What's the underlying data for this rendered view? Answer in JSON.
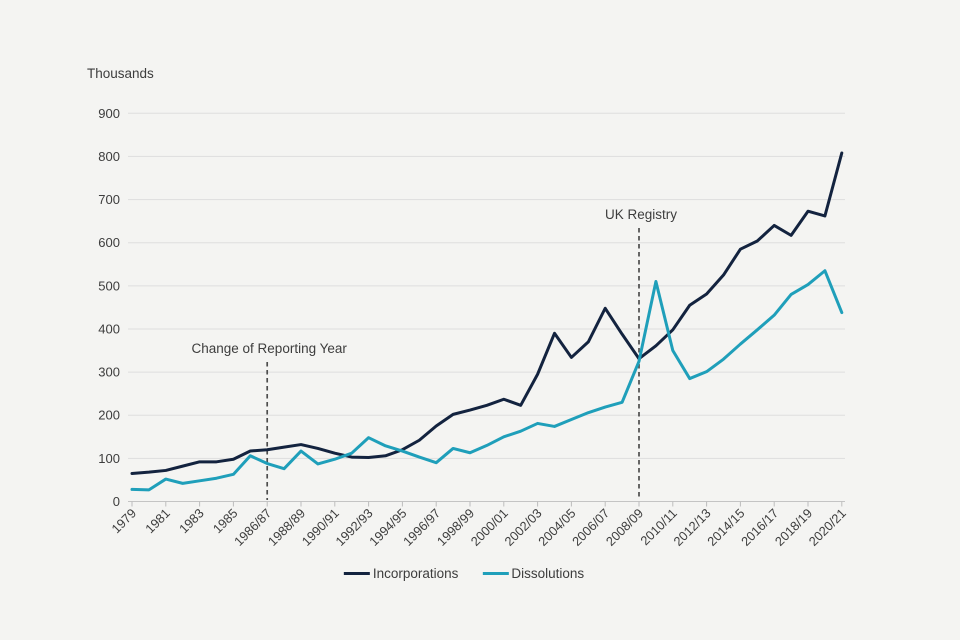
{
  "page": {
    "background": "#f4f4f2"
  },
  "chart_data": {
    "type": "line",
    "unit_label": "Thousands",
    "ylim": [
      0,
      900
    ],
    "y_tick_labels": [
      "0",
      "100",
      "200",
      "300",
      "400",
      "500",
      "600",
      "700",
      "800",
      "900"
    ],
    "grid": "horizontal",
    "legend_position": "bottom-center",
    "categories": [
      "1979",
      "1980",
      "1981",
      "1982",
      "1983",
      "1984",
      "1985",
      "1986",
      "1986/87",
      "1987/88",
      "1988/89",
      "1989/90",
      "1990/91",
      "1991/92",
      "1992/93",
      "1993/94",
      "1994/95",
      "1995/96",
      "1996/97",
      "1997/98",
      "1998/99",
      "1999/00",
      "2000/01",
      "2001/02",
      "2002/03",
      "2003/04",
      "2004/05",
      "2005/06",
      "2006/07",
      "2007/08",
      "2008/09",
      "2009/10",
      "2010/11",
      "2011/12",
      "2012/13",
      "2013/14",
      "2014/15",
      "2015/16",
      "2016/17",
      "2017/18",
      "2018/19",
      "2019/20",
      "2020/21"
    ],
    "x_tick_labels": [
      "1979",
      "1981",
      "1983",
      "1985",
      "1986/87",
      "1988/89",
      "1990/91",
      "1992/93",
      "1994/95",
      "1996/97",
      "1998/99",
      "2000/01",
      "2002/03",
      "2004/05",
      "2006/07",
      "2008/09",
      "2010/11",
      "2012/13",
      "2014/15",
      "2016/17",
      "2018/19",
      "2020/21"
    ],
    "series": [
      {
        "name": "Incorporations",
        "color": "#13233f",
        "values": [
          65,
          68,
          72,
          82,
          92,
          92,
          98,
          117,
          120,
          126,
          132,
          123,
          112,
          103,
          102,
          106,
          120,
          142,
          175,
          202,
          212,
          223,
          237,
          223,
          295,
          390,
          334,
          370,
          448,
          388,
          331,
          361,
          398,
          455,
          481,
          525,
          585,
          604,
          640,
          617,
          673,
          662,
          808
        ]
      },
      {
        "name": "Dissolutions",
        "color": "#1f9fba",
        "values": [
          28,
          27,
          52,
          42,
          48,
          54,
          63,
          106,
          88,
          76,
          117,
          87,
          98,
          112,
          148,
          129,
          117,
          103,
          90,
          123,
          113,
          130,
          150,
          163,
          181,
          174,
          190,
          206,
          219,
          230,
          325,
          510,
          350,
          285,
          301,
          330,
          365,
          398,
          432,
          480,
          503,
          535,
          438
        ]
      }
    ],
    "annotations": [
      {
        "label": "Change of Reporting Year",
        "category": "1986/87"
      },
      {
        "label": "UK Registry",
        "category": "2008/09"
      }
    ]
  }
}
